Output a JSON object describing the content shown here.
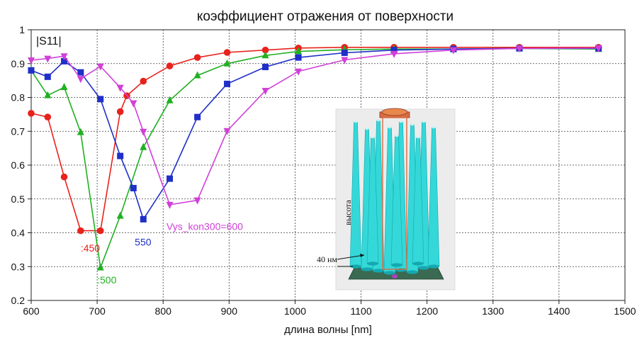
{
  "chart_data": {
    "type": "line",
    "title": "коэффициент отражения от поверхности",
    "xlabel": "длина волны [nm]",
    "ylabel_in_plot": "|S11|",
    "xlim": [
      600,
      1500
    ],
    "ylim": [
      0.2,
      1.0
    ],
    "xticks": [
      600,
      700,
      800,
      900,
      1000,
      1100,
      1200,
      1300,
      1400,
      1500
    ],
    "yticks": [
      0.2,
      0.3,
      0.4,
      0.5,
      0.6,
      0.7,
      0.8,
      0.9,
      1.0
    ],
    "ytick_labels": [
      "0.2",
      "0.3",
      "0.4",
      "0.5",
      "0.6",
      "0.7",
      "0.8",
      "0.9",
      "1"
    ],
    "grid": true,
    "series": [
      {
        "name": "450",
        "label": ":450",
        "color": "#e8221c",
        "marker": "circle",
        "x": [
          600,
          625,
          650,
          675,
          705,
          735,
          745,
          770,
          810,
          852,
          897,
          955,
          1005,
          1075,
          1150,
          1240,
          1340,
          1460
        ],
        "y": [
          0.753,
          0.742,
          0.565,
          0.406,
          0.406,
          0.758,
          0.805,
          0.848,
          0.893,
          0.918,
          0.933,
          0.94,
          0.946,
          0.948,
          0.948,
          0.948,
          0.948,
          0.948
        ]
      },
      {
        "name": "500",
        "label": ":500",
        "color": "#20b020",
        "marker": "triangle",
        "x": [
          600,
          625,
          650,
          675,
          705,
          735,
          770,
          810,
          852,
          897,
          955,
          1005,
          1075,
          1150,
          1240,
          1340,
          1460
        ],
        "y": [
          0.88,
          0.806,
          0.83,
          0.697,
          0.297,
          0.45,
          0.653,
          0.791,
          0.865,
          0.9,
          0.924,
          0.936,
          0.941,
          0.943,
          0.943,
          0.945,
          0.943
        ]
      },
      {
        "name": "550",
        "label": "550",
        "color": "#1f2fc8",
        "marker": "square",
        "x": [
          600,
          625,
          650,
          675,
          705,
          735,
          755,
          770,
          810,
          852,
          897,
          955,
          1005,
          1075,
          1150,
          1240,
          1340,
          1460
        ],
        "y": [
          0.88,
          0.861,
          0.907,
          0.874,
          0.795,
          0.627,
          0.532,
          0.44,
          0.56,
          0.742,
          0.84,
          0.89,
          0.918,
          0.932,
          0.94,
          0.943,
          0.945,
          0.945
        ]
      },
      {
        "name": "Vys_kon300=600",
        "label": "Vys_kon300=600",
        "color": "#d040d8",
        "marker": "triangle-down",
        "x": [
          600,
          625,
          650,
          675,
          705,
          735,
          755,
          770,
          810,
          852,
          897,
          955,
          1005,
          1075,
          1150,
          1240,
          1340,
          1460
        ],
        "y": [
          0.91,
          0.915,
          0.922,
          0.855,
          0.892,
          0.829,
          0.783,
          0.699,
          0.483,
          0.496,
          0.701,
          0.82,
          0.877,
          0.911,
          0.929,
          0.94,
          0.945,
          0.946
        ]
      }
    ],
    "series_label_positions": [
      {
        "series": 0,
        "x": 675,
        "y": 0.345
      },
      {
        "series": 1,
        "x": 700,
        "y": 0.25
      },
      {
        "series": 2,
        "x": 757,
        "y": 0.362
      },
      {
        "series": 3,
        "x": 805,
        "y": 0.408
      }
    ],
    "inset": {
      "description_label_height": "высота",
      "description_label_width": "40 нм"
    },
    "colors": {
      "grid": "#404040",
      "axis": "#202020",
      "pillar": "#34d8d8",
      "pillar_dark": "#14a8b0",
      "inset_bg": "#ececec",
      "base": "#3a6a52",
      "port": "#d86c42"
    }
  }
}
